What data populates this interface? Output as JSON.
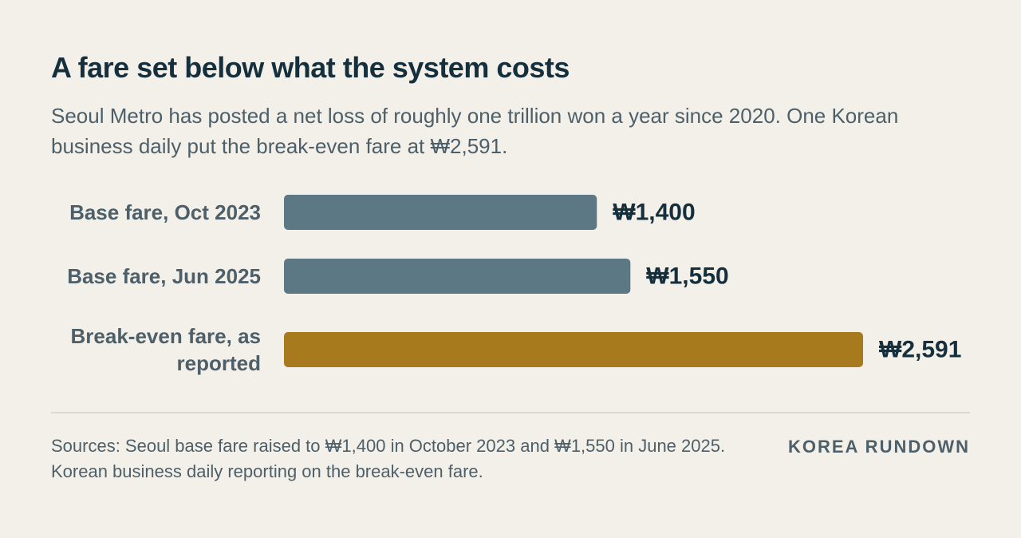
{
  "header": {
    "title": "A fare set below what the system costs",
    "subtitle": "Seoul Metro has posted a net loss of roughly one trillion won a year since 2020. One Korean business daily put the break-even fare at ₩2,591."
  },
  "chart_data": {
    "type": "bar",
    "orientation": "horizontal",
    "categories": [
      [
        "Base fare, Oct 2023"
      ],
      [
        "Base fare, Jun 2025"
      ],
      [
        "Break-even fare, as",
        "reported"
      ]
    ],
    "values": [
      1400,
      1550,
      2591
    ],
    "value_labels": [
      "₩1,400",
      "₩1,550",
      "₩2,591"
    ],
    "colors": [
      "#5c7884",
      "#5c7884",
      "#a77a1e"
    ],
    "xlim": [
      0,
      2591
    ],
    "grid": false,
    "legend": "none"
  },
  "footer": {
    "sources": "Sources: Seoul base fare raised to ₩1,400 in October 2023 and ₩1,550 in June 2025. Korean business daily reporting on the break-even fare.",
    "brand": "KOREA RUNDOWN"
  }
}
